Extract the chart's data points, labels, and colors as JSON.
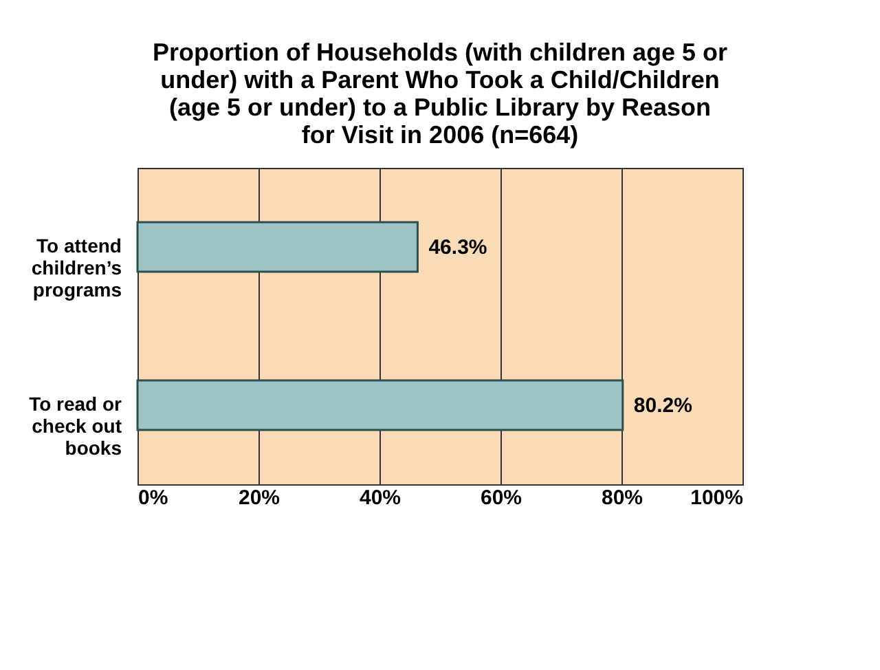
{
  "chart_data": {
    "type": "bar",
    "orientation": "horizontal",
    "title": "Proportion of Households (with children age 5 or under) with a Parent Who Took a Child/Children (age 5 or under) to a Public Library by Reason for Visit in 2006 (n=664)",
    "categories": [
      "To attend children’s programs",
      "To read or check out books"
    ],
    "values": [
      46.3,
      80.2
    ],
    "color": "#9cc3c6",
    "value_labels": [
      "46.3%",
      "80.2%"
    ],
    "xlim": [
      0,
      100
    ],
    "xticks": [
      {
        "value": 0,
        "label": "0%"
      },
      {
        "value": 20,
        "label": "20%"
      },
      {
        "value": 40,
        "label": "40%"
      },
      {
        "value": 60,
        "label": "60%"
      },
      {
        "value": 80,
        "label": "80%"
      },
      {
        "value": 100,
        "label": "100%"
      }
    ],
    "grid": "x"
  }
}
